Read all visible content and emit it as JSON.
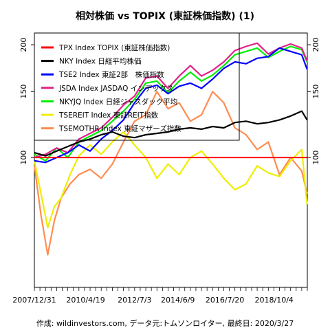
{
  "chart_data": {
    "type": "line",
    "title": "相対株価 vs TOPIX (東証株価指数) (1)",
    "caption": "作成: wildinvestors.com, データ元:トムソンロイター, 最終日: 2020/3/27",
    "xlabel": "",
    "ylabel": "",
    "x_tick_labels": [
      "2007/12/31",
      "2010/4/19",
      "2012/7/3",
      "2014/6/9",
      "2016/7/20",
      "2018/10/4"
    ],
    "x_tick_positions": [
      0,
      2.3,
      4.5,
      6.44,
      8.55,
      10.76
    ],
    "y_ticks": [
      100,
      150,
      200
    ],
    "ylim": [
      45,
      215
    ],
    "xlim": [
      0,
      12.25
    ],
    "log_scale_y": true,
    "legend_position": "top-left",
    "series": [
      {
        "name": "TPX Index TOPIX (東証株価指数)",
        "color": "#ff0000",
        "x": [
          0,
          12.24
        ],
        "values": [
          100,
          100
        ]
      },
      {
        "name": "NKY Index 日経平均株価",
        "color": "#000000",
        "x": [
          0,
          0.5,
          1.0,
          1.5,
          2.0,
          2.5,
          3.0,
          3.5,
          4.0,
          4.5,
          5.0,
          5.5,
          6.0,
          6.5,
          7.0,
          7.5,
          8.0,
          8.5,
          9.0,
          9.5,
          10.0,
          10.5,
          11.0,
          11.5,
          12.0,
          12.24
        ],
        "values": [
          103,
          101,
          104,
          107,
          110,
          112,
          115,
          117,
          114,
          113,
          115,
          116,
          117,
          119,
          120,
          119,
          121,
          120,
          124,
          125,
          123,
          124,
          126,
          129,
          133,
          126
        ]
      },
      {
        "name": "TSE2 Index 東証2部　株価指数",
        "color": "#0000ff",
        "x": [
          0,
          0.5,
          1.0,
          1.5,
          2.0,
          2.5,
          3.0,
          3.5,
          4.0,
          4.5,
          5.0,
          5.5,
          6.0,
          6.5,
          7.0,
          7.5,
          8.0,
          8.5,
          9.0,
          9.5,
          10.0,
          10.5,
          11.0,
          11.5,
          12.0,
          12.24
        ],
        "values": [
          98,
          97,
          100,
          103,
          108,
          104,
          112,
          118,
          126,
          140,
          153,
          156,
          148,
          155,
          158,
          153,
          162,
          173,
          180,
          178,
          184,
          186,
          196,
          192,
          188,
          172
        ]
      },
      {
        "name": "JSDA Index JASDAQ インデックス",
        "color": "#e0218a",
        "x": [
          0,
          0.5,
          1.0,
          1.5,
          2.0,
          2.5,
          3.0,
          3.5,
          4.0,
          4.5,
          5.0,
          5.5,
          6.0,
          6.5,
          7.0,
          7.5,
          8.0,
          8.5,
          9.0,
          9.5,
          10.0,
          10.5,
          11.0,
          11.5,
          12.0,
          12.24
        ],
        "values": [
          100,
          102,
          106,
          103,
          112,
          116,
          120,
          128,
          138,
          146,
          163,
          165,
          153,
          165,
          176,
          165,
          171,
          180,
          193,
          198,
          202,
          189,
          196,
          201,
          196,
          181
        ]
      },
      {
        "name": "NKYJQ Index 日経ジャスダック平均",
        "color": "#00ee00",
        "x": [
          0,
          0.5,
          1.0,
          1.5,
          2.0,
          2.5,
          3.0,
          3.5,
          4.0,
          4.5,
          5.0,
          5.5,
          6.0,
          6.5,
          7.0,
          7.5,
          8.0,
          8.5,
          9.0,
          9.5,
          10.0,
          10.5,
          11.0,
          11.5,
          12.0,
          12.24
        ],
        "values": [
          102,
          98,
          106,
          100,
          110,
          114,
          118,
          125,
          133,
          143,
          158,
          160,
          149,
          160,
          169,
          160,
          166,
          176,
          188,
          192,
          196,
          185,
          192,
          198,
          194,
          180
        ]
      },
      {
        "name": "TSEREIT Index 東証REIT指数",
        "color": "#eeee00",
        "x": [
          0,
          0.3,
          0.6,
          0.9,
          1.2,
          1.6,
          2.0,
          2.5,
          3.0,
          3.5,
          4.0,
          4.5,
          5.0,
          5.5,
          6.0,
          6.5,
          7.0,
          7.5,
          8.0,
          8.5,
          9.0,
          9.5,
          10.0,
          10.5,
          11.0,
          11.5,
          12.0,
          12.24
        ],
        "values": [
          98,
          80,
          65,
          74,
          78,
          90,
          101,
          108,
          102,
          110,
          117,
          108,
          100,
          88,
          96,
          90,
          100,
          104,
          96,
          88,
          82,
          85,
          95,
          91,
          89,
          98,
          105,
          75
        ]
      },
      {
        "name": "TSEMOTHR Index 東証マザーズ指数",
        "color": "#ff8c50",
        "x": [
          0,
          0.3,
          0.6,
          0.9,
          1.2,
          1.6,
          2.0,
          2.5,
          3.0,
          3.5,
          4.0,
          4.5,
          5.0,
          5.5,
          6.0,
          6.5,
          7.0,
          7.5,
          8.0,
          8.5,
          9.0,
          9.5,
          10.0,
          10.5,
          11.0,
          11.5,
          12.0,
          12.24
        ],
        "values": [
          95,
          70,
          55,
          68,
          78,
          85,
          90,
          93,
          88,
          96,
          110,
          125,
          130,
          150,
          135,
          140,
          125,
          130,
          150,
          140,
          120,
          115,
          105,
          110,
          90,
          100,
          92,
          80
        ]
      }
    ]
  },
  "footer": {
    "caption": "作成: wildinvestors.com, データ元:トムソンロイター, 最終日: 2020/3/27"
  }
}
